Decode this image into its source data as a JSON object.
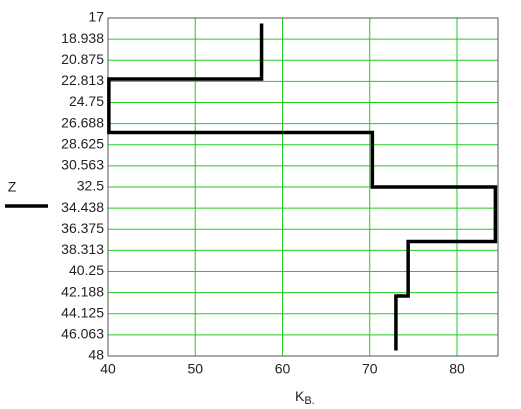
{
  "chart_data": {
    "type": "line",
    "x_label": "K",
    "x_label_sub": "B.",
    "series": [
      {
        "name": "Z",
        "color": "#000000",
        "x": [
          57.6,
          57.6,
          40.1,
          40.1,
          70.3,
          70.3,
          84.4,
          84.4,
          74.4,
          74.4,
          73.0,
          73.0
        ],
        "values": [
          17.5,
          22.6,
          22.6,
          27.5,
          27.5,
          32.5,
          32.5,
          37.5,
          37.5,
          42.5,
          42.5,
          47.5
        ]
      }
    ],
    "xlim": [
      40,
      84.7
    ],
    "xticks": [
      40,
      50,
      60,
      70,
      80
    ],
    "ylim": [
      17,
      48
    ],
    "y_inverted": true,
    "yticks": [
      17,
      {
        "value": 18.9375,
        "label": "18.938"
      },
      20.875,
      {
        "value": 22.8125,
        "label": "22.813"
      },
      24.75,
      {
        "value": 26.6875,
        "label": "26.688"
      },
      28.625,
      {
        "value": 30.5625,
        "label": "30.563"
      },
      32.5,
      {
        "value": 34.4375,
        "label": "34.438"
      },
      36.375,
      {
        "value": 38.3125,
        "label": "38.313"
      },
      40.25,
      {
        "value": 42.1875,
        "label": "42.188"
      },
      44.125,
      {
        "value": 46.0625,
        "label": "46.063"
      },
      48
    ],
    "grid": true,
    "grid_color": "#22cc22",
    "legend": "left"
  }
}
